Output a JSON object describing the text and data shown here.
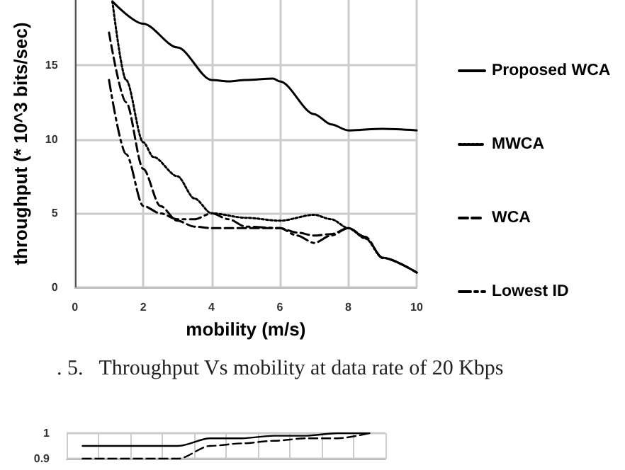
{
  "chart_data": [
    {
      "type": "line",
      "xlabel": "mobility (m/s)",
      "ylabel": "throughput (* 10^3 bits/sec)",
      "annotations": [
        ". 5.   Throughput Vs mobility at data rate of 20 Kbps"
      ],
      "xlim": [
        0,
        10
      ],
      "xticks": [
        0,
        2,
        4,
        6,
        8,
        10
      ],
      "ylim": [
        0,
        19.4
      ],
      "yticks": [
        0,
        5,
        10,
        15
      ],
      "grid": true,
      "legend": "right",
      "marker": "none",
      "series": [
        {
          "name": "Proposed WCA",
          "color": "#000000",
          "line_style": "solid",
          "x": [
            1.1,
            2,
            3,
            4,
            4.5,
            5,
            5.8,
            6,
            7,
            7.5,
            8,
            9,
            10
          ],
          "values": [
            19.3,
            17.8,
            16.2,
            14,
            13.9,
            14,
            14.1,
            13.9,
            11.7,
            11,
            10.6,
            10.7,
            10.6
          ]
        },
        {
          "name": "MWCA",
          "color": "#000000",
          "line_style": "dotted",
          "x": [
            1.1,
            1.5,
            2,
            2.3,
            3,
            3.5,
            4,
            5,
            6,
            7,
            7.5,
            8,
            8.5,
            9,
            10
          ],
          "values": [
            19.3,
            14,
            9.8,
            8.8,
            7.5,
            6,
            5,
            4.7,
            4.5,
            4.9,
            4.6,
            4,
            3.3,
            2,
            1
          ]
        },
        {
          "name": "WCA",
          "color": "#000000",
          "line_style": "dashed",
          "x": [
            1,
            1.5,
            2,
            2.5,
            3,
            3.5,
            4,
            5,
            6,
            6.5,
            7,
            7.5,
            8,
            8.5,
            9,
            10
          ],
          "values": [
            17.2,
            12.5,
            8,
            5.5,
            4.5,
            4.1,
            4,
            4,
            4,
            3.7,
            3.5,
            3.6,
            4,
            3.4,
            2,
            1
          ]
        },
        {
          "name": "Lowest ID",
          "color": "#000000",
          "line_style": "dashdot",
          "x": [
            1,
            1.5,
            2,
            2.5,
            3,
            3.5,
            4,
            4.5,
            5,
            6,
            6.5,
            7,
            7.5,
            8,
            8.5,
            9,
            10
          ],
          "values": [
            14,
            9,
            5.5,
            5,
            4.6,
            4.6,
            5,
            4.6,
            4.1,
            4,
            3.5,
            3,
            3.5,
            4,
            3.4,
            2,
            1
          ]
        }
      ]
    },
    {
      "type": "line",
      "categories": [
        null,
        null,
        null,
        null,
        null,
        null,
        null,
        null,
        null,
        null
      ],
      "ylim": [
        0.9,
        1
      ],
      "yticks": [
        0.9,
        1
      ],
      "grid": true,
      "legend": false,
      "marker": "none",
      "series": [
        {
          "color": "#000000",
          "line_style": "solid",
          "values": [
            0.95,
            0.95,
            0.95,
            0.95,
            0.98,
            0.98,
            0.99,
            0.99,
            1,
            1
          ]
        },
        {
          "color": "#000000",
          "line_style": "dashed",
          "values": [
            0.9,
            0.9,
            0.9,
            0.9,
            0.95,
            0.96,
            0.97,
            0.98,
            0.98,
            1
          ]
        }
      ]
    }
  ]
}
